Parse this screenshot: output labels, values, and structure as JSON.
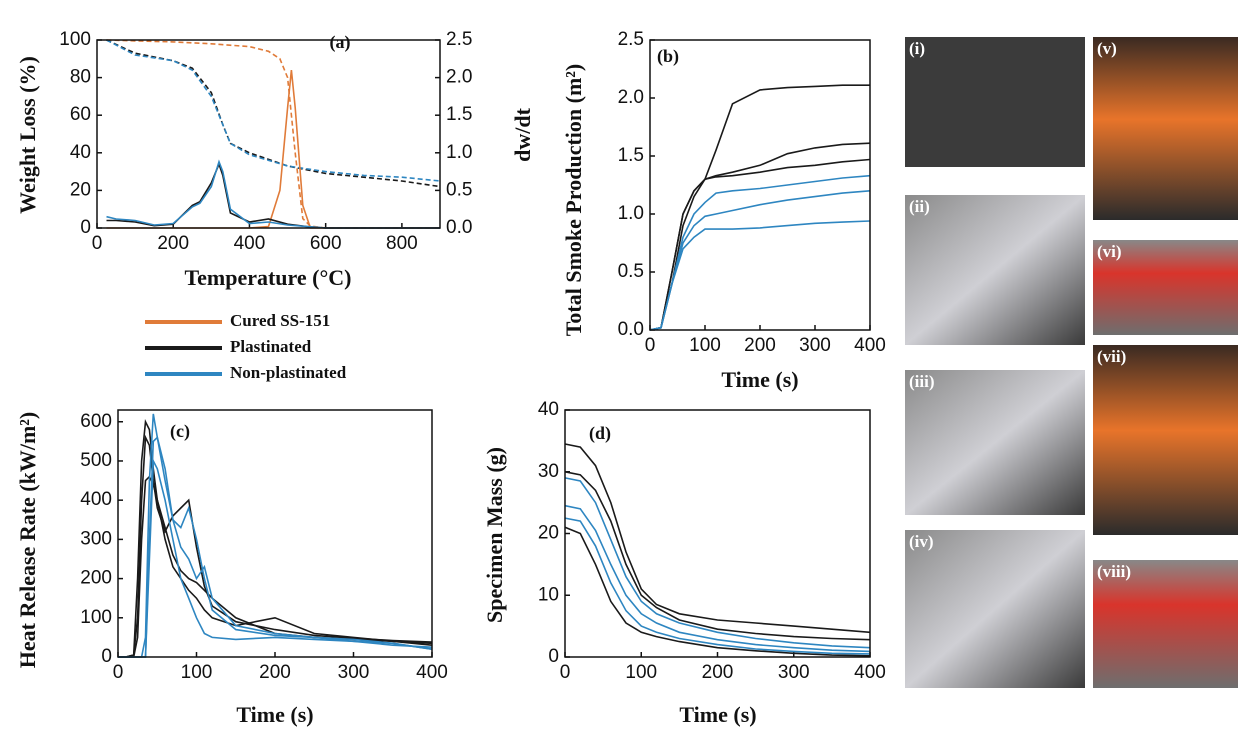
{
  "chart_data": [
    {
      "type": "line",
      "label": "(a)",
      "xlabel": "Temperature (°C)",
      "ylabel": "Weight Loss (%)",
      "y2label": "dw/dt",
      "xlim": [
        0,
        900
      ],
      "xticks": [
        0,
        200,
        400,
        600,
        800
      ],
      "ylim": [
        0,
        100
      ],
      "yticks": [
        0,
        20,
        40,
        60,
        80,
        100
      ],
      "y2lim": [
        0,
        2.5
      ],
      "y2ticks": [
        {
          "value": 0,
          "label": "0.0"
        },
        0.5,
        {
          "value": 1,
          "label": "1.0"
        },
        1.5,
        {
          "value": 2,
          "label": "2.0"
        },
        2.5
      ],
      "series": [
        {
          "name": "Cured SS-151",
          "color": "#e07b39",
          "dash": true,
          "x": [
            25,
            100,
            200,
            300,
            400,
            450,
            480,
            500,
            520,
            540,
            560,
            600,
            900
          ],
          "values": [
            100,
            99.5,
            99,
            98,
            96.5,
            94,
            90,
            80,
            40,
            5,
            1,
            0,
            0
          ]
        },
        {
          "name": "Plastinated",
          "color": "#1a1a1a",
          "dash": true,
          "x": [
            25,
            100,
            200,
            250,
            300,
            330,
            350,
            400,
            500,
            600,
            700,
            800,
            900
          ],
          "values": [
            100,
            93,
            89,
            85,
            72,
            55,
            45,
            40,
            33,
            29,
            27,
            25,
            22
          ]
        },
        {
          "name": "Non-plastinated",
          "color": "#2e86c1",
          "dash": true,
          "x": [
            25,
            100,
            200,
            250,
            300,
            330,
            350,
            400,
            500,
            600,
            700,
            800,
            900
          ],
          "values": [
            100,
            92,
            89,
            84,
            70,
            55,
            45,
            39,
            33,
            30,
            28,
            27,
            25
          ]
        },
        {
          "name": "Cured SS-151",
          "color": "#e07b39",
          "axis": "y2",
          "x": [
            25,
            400,
            450,
            480,
            500,
            510,
            520,
            540,
            560,
            900
          ],
          "values": [
            0,
            0,
            0.02,
            0.5,
            1.6,
            2.1,
            1.6,
            0.3,
            0,
            0
          ]
        },
        {
          "name": "Plastinated",
          "color": "#1a1a1a",
          "axis": "y2",
          "x": [
            25,
            50,
            100,
            150,
            200,
            250,
            270,
            300,
            320,
            330,
            350,
            400,
            450,
            500,
            550,
            600,
            900
          ],
          "values": [
            0.1,
            0.1,
            0.08,
            0.03,
            0.05,
            0.3,
            0.35,
            0.6,
            0.85,
            0.7,
            0.2,
            0.08,
            0.12,
            0.05,
            0.02,
            0,
            0
          ]
        },
        {
          "name": "Non-plastinated",
          "color": "#2e86c1",
          "axis": "y2",
          "x": [
            25,
            50,
            100,
            150,
            200,
            250,
            270,
            300,
            320,
            330,
            350,
            400,
            450,
            500,
            550,
            600,
            900
          ],
          "values": [
            0.15,
            0.12,
            0.1,
            0.04,
            0.06,
            0.28,
            0.33,
            0.55,
            0.88,
            0.75,
            0.25,
            0.06,
            0.08,
            0.04,
            0.02,
            0,
            0
          ]
        }
      ]
    },
    {
      "type": "line",
      "label": "(b)",
      "xlabel": "Time (s)",
      "ylabel": "Total Smoke Production (m²)",
      "xlim": [
        0,
        400
      ],
      "xticks": [
        0,
        100,
        200,
        300,
        400
      ],
      "ylim": [
        0,
        2.5
      ],
      "yticks": [
        {
          "value": 0,
          "label": "0.0"
        },
        0.5,
        {
          "value": 1,
          "label": "1.0"
        },
        1.5,
        {
          "value": 2,
          "label": "2.0"
        },
        2.5
      ],
      "x": [
        0,
        20,
        40,
        60,
        80,
        100,
        120,
        150,
        200,
        250,
        300,
        350,
        400
      ],
      "series": [
        {
          "name": "Plastinated",
          "color": "#1a1a1a",
          "values": [
            0,
            0.02,
            0.4,
            0.9,
            1.15,
            1.3,
            1.55,
            1.95,
            2.07,
            2.09,
            2.1,
            2.11,
            2.11
          ]
        },
        {
          "name": "Plastinated",
          "color": "#1a1a1a",
          "values": [
            0,
            0.02,
            0.5,
            1.0,
            1.2,
            1.3,
            1.33,
            1.36,
            1.42,
            1.52,
            1.57,
            1.6,
            1.61
          ]
        },
        {
          "name": "Plastinated",
          "color": "#1a1a1a",
          "values": [
            0,
            0.02,
            0.5,
            1.0,
            1.2,
            1.3,
            1.32,
            1.33,
            1.36,
            1.4,
            1.42,
            1.45,
            1.47
          ]
        },
        {
          "name": "Non-plastinated",
          "color": "#2e86c1",
          "values": [
            0,
            0.02,
            0.4,
            0.8,
            1.0,
            1.1,
            1.18,
            1.2,
            1.22,
            1.25,
            1.28,
            1.31,
            1.33
          ]
        },
        {
          "name": "Non-plastinated",
          "color": "#2e86c1",
          "values": [
            0,
            0.02,
            0.4,
            0.75,
            0.9,
            0.98,
            1.0,
            1.03,
            1.08,
            1.12,
            1.15,
            1.18,
            1.2
          ]
        },
        {
          "name": "Non-plastinated",
          "color": "#2e86c1",
          "values": [
            0,
            0.02,
            0.4,
            0.7,
            0.8,
            0.87,
            0.87,
            0.87,
            0.88,
            0.9,
            0.92,
            0.93,
            0.94
          ]
        }
      ]
    },
    {
      "type": "line",
      "label": "(c)",
      "xlabel": "Time (s)",
      "ylabel": "Heat Release Rate (kW/m²)",
      "xlim": [
        0,
        400
      ],
      "xticks": [
        0,
        100,
        200,
        300,
        400
      ],
      "ylim": [
        0,
        630
      ],
      "yticks": [
        0,
        100,
        200,
        300,
        400,
        500,
        600
      ],
      "x": [
        0,
        10,
        20,
        25,
        30,
        35,
        40,
        45,
        50,
        60,
        70,
        80,
        90,
        100,
        110,
        120,
        150,
        200,
        250,
        300,
        350,
        400
      ],
      "series": [
        {
          "name": "Plastinated",
          "color": "#1a1a1a",
          "values": [
            0,
            0,
            5,
            200,
            500,
            600,
            580,
            480,
            400,
            300,
            230,
            200,
            170,
            150,
            120,
            100,
            80,
            100,
            60,
            50,
            40,
            35
          ]
        },
        {
          "name": "Plastinated",
          "color": "#1a1a1a",
          "values": [
            0,
            0,
            5,
            100,
            400,
            560,
            540,
            450,
            380,
            320,
            360,
            380,
            400,
            280,
            180,
            130,
            90,
            70,
            55,
            48,
            42,
            38
          ]
        },
        {
          "name": "Plastinated",
          "color": "#1a1a1a",
          "values": [
            0,
            0,
            0,
            50,
            300,
            450,
            460,
            440,
            400,
            330,
            260,
            220,
            200,
            190,
            170,
            150,
            100,
            60,
            50,
            45,
            40,
            30
          ]
        },
        {
          "name": "Non-plastinated",
          "color": "#2e86c1",
          "values": [
            0,
            0,
            0,
            0,
            0,
            50,
            450,
            620,
            560,
            450,
            350,
            330,
            380,
            300,
            200,
            120,
            70,
            55,
            50,
            45,
            35,
            20
          ]
        },
        {
          "name": "Non-plastinated",
          "color": "#2e86c1",
          "values": [
            0,
            0,
            0,
            0,
            0,
            0,
            300,
            550,
            560,
            480,
            350,
            280,
            250,
            200,
            230,
            150,
            80,
            60,
            50,
            40,
            30,
            25
          ]
        },
        {
          "name": "Non-plastinated",
          "color": "#2e86c1",
          "values": [
            0,
            0,
            0,
            0,
            0,
            0,
            250,
            500,
            480,
            400,
            300,
            200,
            150,
            100,
            60,
            50,
            45,
            50,
            45,
            40,
            35,
            20
          ]
        }
      ]
    },
    {
      "type": "line",
      "label": "(d)",
      "xlabel": "Time (s)",
      "ylabel": "Specimen Mass (g)",
      "xlim": [
        0,
        400
      ],
      "xticks": [
        0,
        100,
        200,
        300,
        400
      ],
      "ylim": [
        0,
        40
      ],
      "yticks": [
        0,
        10,
        20,
        30,
        40
      ],
      "x": [
        0,
        20,
        40,
        60,
        80,
        100,
        120,
        150,
        200,
        250,
        300,
        350,
        400
      ],
      "series": [
        {
          "name": "Plastinated",
          "color": "#1a1a1a",
          "values": [
            34.5,
            34,
            31,
            25,
            17,
            11,
            8.5,
            7,
            6,
            5.5,
            5,
            4.5,
            4
          ]
        },
        {
          "name": "Plastinated",
          "color": "#1a1a1a",
          "values": [
            30,
            29.5,
            27,
            22,
            15,
            10,
            8,
            6,
            4.5,
            3.8,
            3.3,
            3,
            2.8
          ]
        },
        {
          "name": "Plastinated",
          "color": "#1a1a1a",
          "values": [
            21,
            20,
            15,
            9,
            5.5,
            4,
            3.3,
            2.5,
            1.5,
            1,
            0.6,
            0.3,
            0.2
          ]
        },
        {
          "name": "Non-plastinated",
          "color": "#2e86c1",
          "values": [
            29,
            28.5,
            25,
            19,
            13,
            9,
            7,
            5.5,
            4,
            3,
            2.3,
            1.8,
            1.5
          ]
        },
        {
          "name": "Non-plastinated",
          "color": "#2e86c1",
          "values": [
            24.5,
            24,
            20.5,
            15,
            10,
            7,
            5.5,
            4,
            2.8,
            2,
            1.5,
            1.1,
            0.9
          ]
        },
        {
          "name": "Non-plastinated",
          "color": "#2e86c1",
          "values": [
            22.5,
            22,
            18,
            12,
            7.5,
            5,
            4,
            3,
            2,
            1.3,
            0.9,
            0.6,
            0.5
          ]
        }
      ]
    }
  ],
  "photos": {
    "labels": [
      "(i)",
      "(ii)",
      "(iii)",
      "(iv)",
      "(v)",
      "(vi)",
      "(vii)",
      "(viii)"
    ]
  }
}
